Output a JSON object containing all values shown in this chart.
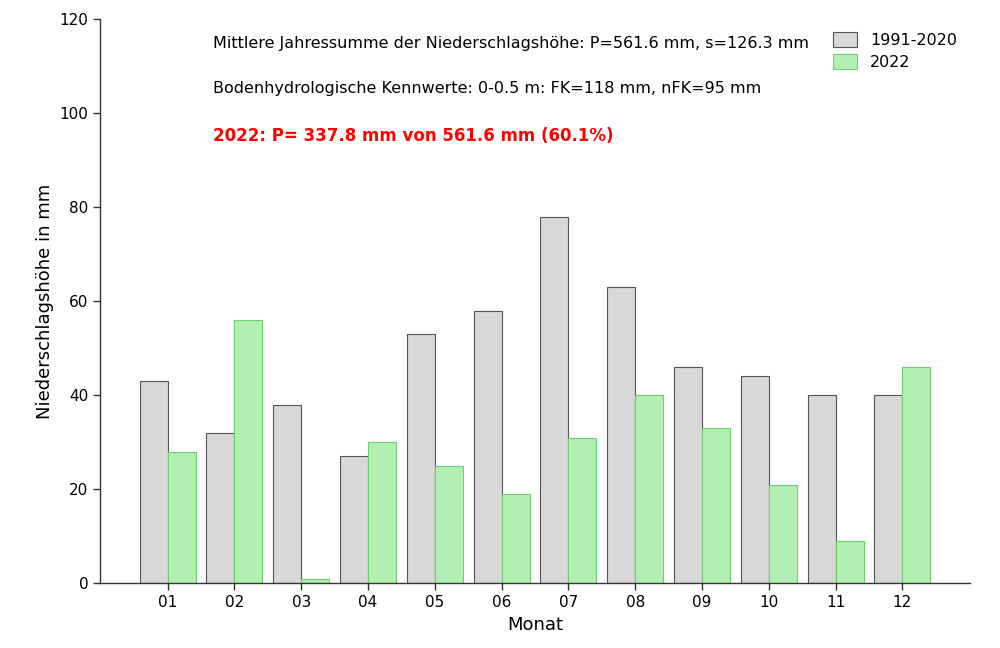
{
  "months": [
    "01",
    "02",
    "03",
    "04",
    "05",
    "06",
    "07",
    "08",
    "09",
    "10",
    "11",
    "12"
  ],
  "values_1991_2020": [
    43,
    32,
    38,
    27,
    53,
    58,
    78,
    63,
    46,
    44,
    40,
    40
  ],
  "values_2022": [
    28,
    56,
    1,
    30,
    25,
    19,
    31,
    40,
    33,
    21,
    9,
    46
  ],
  "color_1991_2020": "#d8d8d8",
  "color_2022": "#b2f0b2",
  "edgecolor_1991_2020": "#555555",
  "edgecolor_2022": "#70cc70",
  "xlabel": "Monat",
  "ylabel": "Niederschlagshohe in mm",
  "ylim": [
    0,
    120
  ],
  "yticks": [
    0,
    20,
    40,
    60,
    80,
    100,
    120
  ],
  "legend_labels": [
    "1991-2020",
    "2022"
  ],
  "annotation_line1": "Mittlere Jahressumme der Niederschlagshöhe: P=561.6 mm, s=126.3 mm",
  "annotation_line2": "Bodenhydrologische Kennwerte: 0-0.5 m: FK=118 mm, nFK=95 mm",
  "annotation_red": "2022: P= 337.8 mm von 561.6 mm (60.1%)",
  "background_color": "#ffffff",
  "bar_width": 0.42,
  "fontsize_annotation": 11.5,
  "fontsize_axis_label": 13,
  "fontsize_ticks": 11,
  "fontsize_legend": 11.5
}
